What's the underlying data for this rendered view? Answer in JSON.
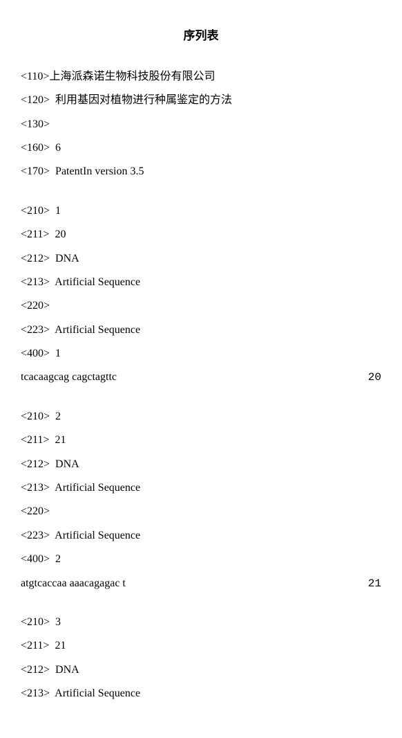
{
  "title": "序列表",
  "header": {
    "l110": "<110>上海派森诺生物科技股份有限公司",
    "l120": "<120>  利用基因对植物进行种属鉴定的方法",
    "l130": "<130>",
    "l160": "<160>  6",
    "l170": "<170>  PatentIn version 3.5"
  },
  "seq1": {
    "l210": "<210>  1",
    "l211": "<211>  20",
    "l212": "<212>  DNA",
    "l213": "<213>  Artificial Sequence",
    "l220": "<220>",
    "l223": "<223>  Artificial Sequence",
    "l400": "<400>  1",
    "sequence": "tcacaagcag cagctagttc",
    "length": "20"
  },
  "seq2": {
    "l210": "<210>  2",
    "l211": "<211>  21",
    "l212": "<212>  DNA",
    "l213": "<213>  Artificial Sequence",
    "l220": "<220>",
    "l223": "<223>  Artificial Sequence",
    "l400": "<400>  2",
    "sequence": "atgtcaccaa aaacagagac t",
    "length": "21"
  },
  "seq3": {
    "l210": "<210>  3",
    "l211": "<211>  21",
    "l212": "<212>  DNA",
    "l213": "<213>  Artificial Sequence"
  }
}
